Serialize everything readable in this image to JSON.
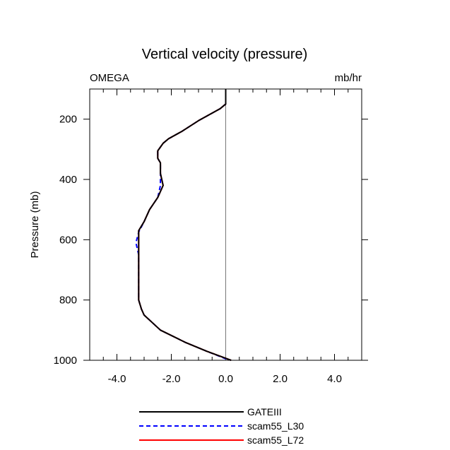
{
  "chart_data": {
    "type": "line",
    "title": "Vertical velocity (pressure)",
    "variable_label": "OMEGA",
    "units_label": "mb/hr",
    "xlabel": "",
    "ylabel": "Pressure (mb)",
    "xlim": [
      -5,
      5
    ],
    "ylim": [
      1000,
      100
    ],
    "y_inverted": true,
    "x_ticks": [
      -4,
      -2,
      0,
      2,
      4
    ],
    "x_tick_labels": [
      "-4.0",
      "-2.0",
      "0.0",
      "2.0",
      "4.0"
    ],
    "y_ticks": [
      200,
      400,
      600,
      800,
      1000
    ],
    "y_tick_labels": [
      "200",
      "400",
      "600",
      "800",
      "1000"
    ],
    "zero_line": 0,
    "series": [
      {
        "name": "GATEIII",
        "color": "#000000",
        "dash": "solid",
        "points": [
          [
            0.0,
            100
          ],
          [
            0.0,
            130
          ],
          [
            0.0,
            150
          ],
          [
            -0.2,
            165
          ],
          [
            -0.6,
            185
          ],
          [
            -1.0,
            205
          ],
          [
            -1.6,
            240
          ],
          [
            -2.1,
            265
          ],
          [
            -2.3,
            280
          ],
          [
            -2.5,
            305
          ],
          [
            -2.5,
            330
          ],
          [
            -2.4,
            345
          ],
          [
            -2.4,
            380
          ],
          [
            -2.3,
            420
          ],
          [
            -2.5,
            460
          ],
          [
            -2.8,
            500
          ],
          [
            -3.0,
            540
          ],
          [
            -3.2,
            570
          ],
          [
            -3.2,
            600
          ],
          [
            -3.2,
            640
          ],
          [
            -3.2,
            700
          ],
          [
            -3.2,
            760
          ],
          [
            -3.2,
            800
          ],
          [
            -3.1,
            830
          ],
          [
            -3.0,
            850
          ],
          [
            -2.7,
            875
          ],
          [
            -2.4,
            900
          ],
          [
            -1.5,
            940
          ],
          [
            -0.7,
            970
          ],
          [
            0.2,
            1000
          ]
        ]
      },
      {
        "name": "scam55_L30",
        "color": "#0000ff",
        "dash": "dashed",
        "points": [
          [
            0.0,
            100
          ],
          [
            0.0,
            130
          ],
          [
            0.0,
            150
          ],
          [
            -0.2,
            165
          ],
          [
            -0.6,
            185
          ],
          [
            -1.0,
            205
          ],
          [
            -1.6,
            240
          ],
          [
            -2.1,
            265
          ],
          [
            -2.3,
            280
          ],
          [
            -2.5,
            305
          ],
          [
            -2.5,
            330
          ],
          [
            -2.4,
            345
          ],
          [
            -2.4,
            380
          ],
          [
            -2.4,
            420
          ],
          [
            -2.5,
            460
          ],
          [
            -2.8,
            500
          ],
          [
            -3.0,
            540
          ],
          [
            -3.2,
            575
          ],
          [
            -3.3,
            610
          ],
          [
            -3.2,
            650
          ],
          [
            -3.2,
            700
          ],
          [
            -3.2,
            760
          ],
          [
            -3.2,
            800
          ],
          [
            -3.1,
            830
          ],
          [
            -3.0,
            850
          ],
          [
            -2.7,
            875
          ],
          [
            -2.4,
            900
          ],
          [
            -1.5,
            940
          ],
          [
            -0.7,
            970
          ],
          [
            0.0,
            995
          ],
          [
            0.2,
            1000
          ]
        ]
      },
      {
        "name": "scam55_L72",
        "color": "#ff0000",
        "dash": "solid",
        "points": [
          [
            0.0,
            100
          ],
          [
            0.0,
            130
          ],
          [
            0.0,
            150
          ],
          [
            -0.2,
            165
          ],
          [
            -0.6,
            185
          ],
          [
            -1.0,
            205
          ],
          [
            -1.6,
            240
          ],
          [
            -2.1,
            265
          ],
          [
            -2.3,
            280
          ],
          [
            -2.5,
            305
          ],
          [
            -2.5,
            330
          ],
          [
            -2.4,
            345
          ],
          [
            -2.4,
            380
          ],
          [
            -2.3,
            420
          ],
          [
            -2.5,
            460
          ],
          [
            -2.8,
            500
          ],
          [
            -3.0,
            540
          ],
          [
            -3.2,
            570
          ],
          [
            -3.2,
            600
          ],
          [
            -3.2,
            640
          ],
          [
            -3.2,
            700
          ],
          [
            -3.2,
            760
          ],
          [
            -3.2,
            800
          ],
          [
            -3.1,
            830
          ],
          [
            -3.0,
            850
          ],
          [
            -2.7,
            875
          ],
          [
            -2.4,
            900
          ],
          [
            -1.5,
            940
          ],
          [
            -0.7,
            970
          ],
          [
            0.2,
            1000
          ]
        ]
      }
    ],
    "legend_position": "bottom-center"
  }
}
